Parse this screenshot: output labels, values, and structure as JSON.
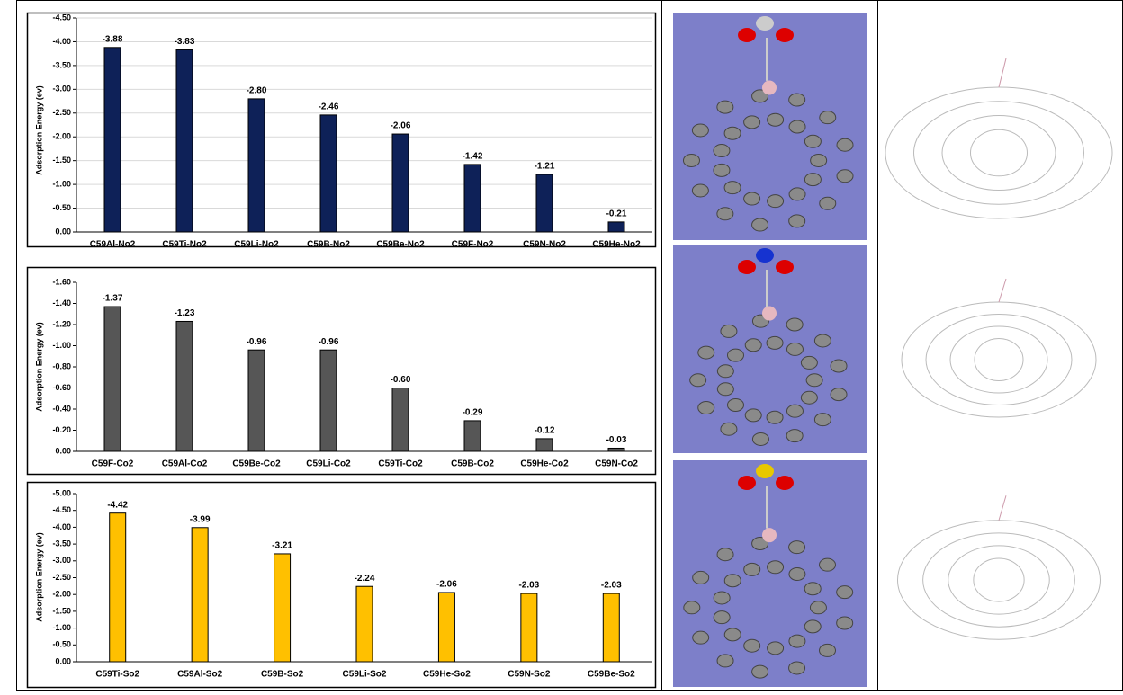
{
  "chart_data": [
    {
      "type": "bar",
      "y_label": "Adsorption Energy (ev)",
      "color": "#0e2158",
      "grid": true,
      "categories": [
        "C59Al-No2",
        "C59Ti-No2",
        "C59Li-No2",
        "C59B-No2",
        "C59Be-No2",
        "C59F-No2",
        "C59N-No2",
        "C59He-No2"
      ],
      "values": [
        -3.88,
        -3.83,
        -2.8,
        -2.46,
        -2.06,
        -1.42,
        -1.21,
        -0.21
      ],
      "value_labels": [
        "-3.88",
        "-3.83",
        "-2.80",
        "-2.46",
        "-2.06",
        "-1.42",
        "-1.21",
        "-0.21"
      ],
      "ylim": [
        0,
        -4.5
      ],
      "yticks": [
        {
          "value": 0,
          "label": "0.00"
        },
        {
          "value": -0.5,
          "label": "-0.50"
        },
        {
          "value": -1,
          "label": "-1.00"
        },
        {
          "value": -1.5,
          "label": "-1.50"
        },
        {
          "value": -2,
          "label": "-2.00"
        },
        {
          "value": -2.5,
          "label": "-2.50"
        },
        {
          "value": -3,
          "label": "-3.00"
        },
        {
          "value": -3.5,
          "label": "-3.50"
        },
        {
          "value": -4,
          "label": "-4.00"
        },
        {
          "value": -4.5,
          "label": "-4.50"
        }
      ]
    },
    {
      "type": "bar",
      "y_label": "Adsorption Energy (ev)",
      "color": "#565656",
      "grid": false,
      "categories": [
        "C59F-Co2",
        "C59Al-Co2",
        "C59Be-Co2",
        "C59Li-Co2",
        "C59Ti-Co2",
        "C59B-Co2",
        "C59He-Co2",
        "C59N-Co2"
      ],
      "values": [
        -1.37,
        -1.23,
        -0.96,
        -0.96,
        -0.6,
        -0.29,
        -0.12,
        -0.03
      ],
      "value_labels": [
        "-1.37",
        "-1.23",
        "-0.96",
        "-0.96",
        "-0.60",
        "-0.29",
        "-0.12",
        "-0.03"
      ],
      "ylim": [
        0,
        -1.6
      ],
      "yticks": [
        {
          "value": 0,
          "label": "0.00"
        },
        {
          "value": -0.2,
          "label": "-0.20"
        },
        {
          "value": -0.4,
          "label": "-0.40"
        },
        {
          "value": -0.6,
          "label": "-0.60"
        },
        {
          "value": -0.8,
          "label": "-0.80"
        },
        {
          "value": -1,
          "label": "-1.00"
        },
        {
          "value": -1.2,
          "label": "-1.20"
        },
        {
          "value": -1.4,
          "label": "-1.40"
        },
        {
          "value": -1.6,
          "label": "-1.60"
        }
      ]
    },
    {
      "type": "bar",
      "y_label": "Adsorption Energy (ev)",
      "color": "#ffc000",
      "grid": false,
      "categories": [
        "C59Ti-So2",
        "C59Al-So2",
        "C59B-So2",
        "C59Li-So2",
        "C59He-So2",
        "C59N-So2",
        "C59Be-So2"
      ],
      "values": [
        -4.42,
        -3.99,
        -3.21,
        -2.24,
        -2.06,
        -2.03,
        -2.03
      ],
      "value_labels": [
        "-4.42",
        "-3.99",
        "-3.21",
        "-2.24",
        "-2.06",
        "-2.03",
        "-2.03"
      ],
      "ylim": [
        0,
        -5
      ],
      "yticks": [
        {
          "value": 0,
          "label": "0.00"
        },
        {
          "value": -0.5,
          "label": "-0.50"
        },
        {
          "value": -1,
          "label": "-1.00"
        },
        {
          "value": -1.5,
          "label": "-1.50"
        },
        {
          "value": -2,
          "label": "-2.00"
        },
        {
          "value": -2.5,
          "label": "-2.50"
        },
        {
          "value": -3,
          "label": "-3.00"
        },
        {
          "value": -3.5,
          "label": "-3.50"
        },
        {
          "value": -4,
          "label": "-4.00"
        },
        {
          "value": -4.5,
          "label": "-4.50"
        },
        {
          "value": -5,
          "label": "-5.00"
        }
      ]
    }
  ]
}
